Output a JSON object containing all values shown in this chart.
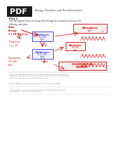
{
  "background_color": "#ffffff",
  "pdf_bg": "#1a1a1a",
  "pdf_text_color": "#ffffff",
  "header_color": "#222222",
  "red_color": "#cc0000",
  "blue_color": "#3333cc",
  "dark_text": "#333333",
  "gray_text": "#555555",
  "pdf_label": "PDF",
  "header_line": "Energy Transfers and Transformations",
  "part1": "Part 1",
  "instruction": "Use the diagram below of energy flow through an ecosystem to answer the\nfollowing questions.",
  "solar_text": "Solar\nEnergy\n1 x 10⁶ kJ/m²/yr",
  "temp_text": "Temperature\ne.g. x 10⁵",
  "producers_text": "Producers\n8 x 10⁴\nkJ/m²",
  "producers_sub": "kJ/m²",
  "herbivores_text": "Herbivores\n8.7 x 10³\nkJ/m²",
  "herbivores_sub": "kJ/m²",
  "decomposers_text": "Decomposers\n0.5 x 10³\nkJ/m²",
  "producers_label": "Producers",
  "herbivores_label": "Herbivores",
  "atmosphere_text": "Atmosphere",
  "atmosphere_sub": "kJ/m²",
  "carnivores_text": "Carnivores",
  "carnivores_val": "8 x 10²",
  "carnivores_sub": "kJ/m²",
  "ocean_text1": "OCEANS/DEEP SEA",
  "ocean_text2": "SEDIMENTS",
  "plant_text": "Plant",
  "heat_text": "Heat",
  "q_header": "Identify the following transfers and transformations from the diagram.\nWrite the letter (a, b, c, d, e) in the appropriate location on diagram and\nlabel it as a transfer (Tr) or transformation (Ta).",
  "q_a": "a) The radiation (energy) reflected from the surface of plants",
  "q_b": "b) The radiation (energy) that evaporation of water from the plants\n(transpiration – get to know this word)"
}
